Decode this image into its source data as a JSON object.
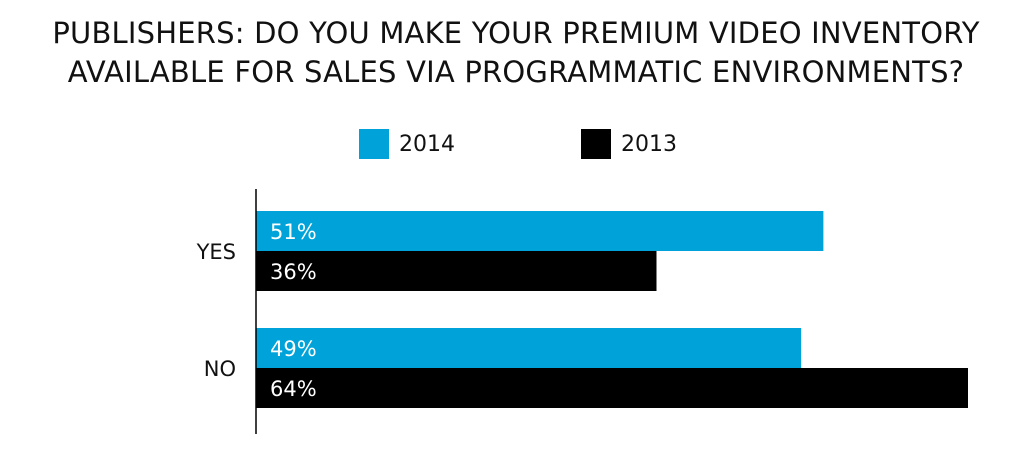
{
  "title_lines": [
    "PUBLISHERS: DO YOU MAKE YOUR PREMIUM VIDEO INVENTORY",
    "AVAILABLE FOR SALES VIA PROGRAMMATIC ENVIRONMENTS?"
  ],
  "colors": {
    "series_2014": "#00A3D9",
    "series_2013": "#000000",
    "axis": "#000000",
    "bar_label": "#ffffff",
    "category_label": "#111111"
  },
  "chart_data": {
    "type": "bar",
    "orientation": "horizontal",
    "title": "PUBLISHERS: DO YOU MAKE YOUR PREMIUM VIDEO INVENTORY AVAILABLE FOR SALES VIA PROGRAMMATIC ENVIRONMENTS?",
    "categories": [
      "YES",
      "NO"
    ],
    "series": [
      {
        "name": "2014",
        "values": [
          51,
          49
        ],
        "labels": [
          "51%",
          "49%"
        ]
      },
      {
        "name": "2013",
        "values": [
          36,
          64
        ],
        "labels": [
          "36%",
          "64%"
        ]
      }
    ],
    "value_unit": "%",
    "xlim": [
      0,
      64
    ],
    "legend_position": "top-center",
    "grid": false,
    "xlabel": "",
    "ylabel": ""
  }
}
